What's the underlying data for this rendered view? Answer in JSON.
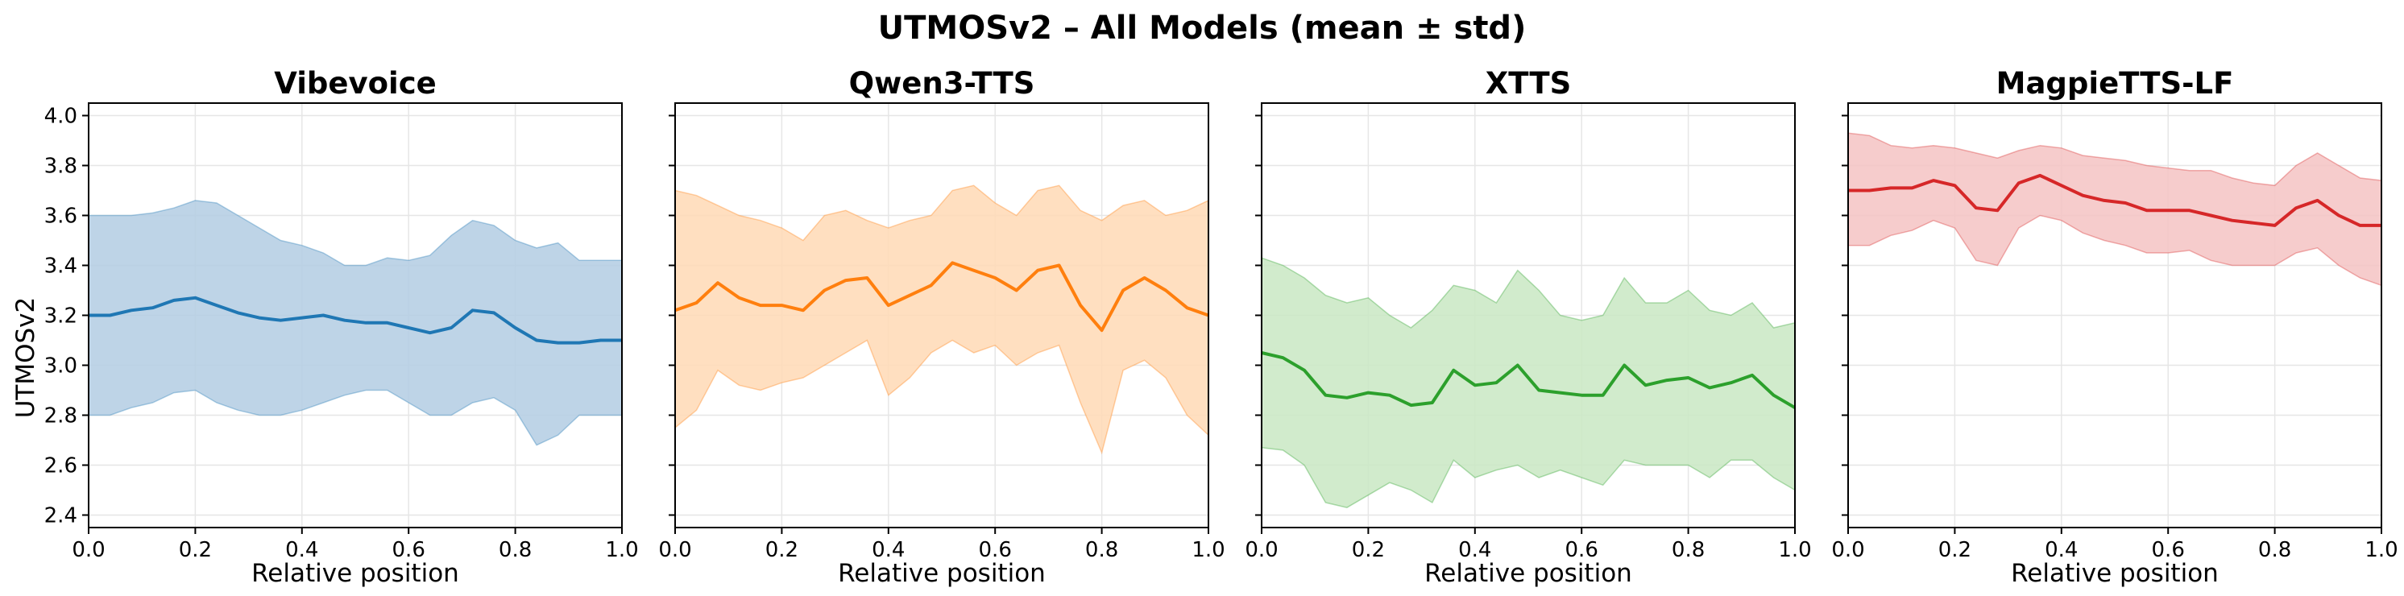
{
  "figure": {
    "suptitle": "UTMOSv2 – All Models (mean ± std)",
    "ylabel": "UTMOSv2"
  },
  "chart_data": [
    {
      "type": "line",
      "title": "Vibevoice",
      "xlabel": "Relative position",
      "ylabel": "UTMOSv2",
      "xlim": [
        0,
        1
      ],
      "ylim": [
        2.35,
        4.05
      ],
      "xticks": [
        "0.0",
        "0.2",
        "0.4",
        "0.6",
        "0.8",
        "1.0"
      ],
      "yticks": [
        "2.4",
        "2.6",
        "2.8",
        "3.0",
        "3.2",
        "3.4",
        "3.6",
        "3.8",
        "4.0"
      ],
      "grid": true,
      "color": "#1f77b4",
      "band_color": "#b3cde3",
      "x": [
        0.0,
        0.04,
        0.08,
        0.12,
        0.16,
        0.2,
        0.24,
        0.28,
        0.32,
        0.36,
        0.4,
        0.44,
        0.48,
        0.52,
        0.56,
        0.6,
        0.64,
        0.68,
        0.72,
        0.76,
        0.8,
        0.84,
        0.88,
        0.92,
        0.96,
        1.0
      ],
      "mean": [
        3.2,
        3.2,
        3.22,
        3.23,
        3.26,
        3.27,
        3.24,
        3.21,
        3.19,
        3.18,
        3.19,
        3.2,
        3.18,
        3.17,
        3.17,
        3.15,
        3.13,
        3.15,
        3.22,
        3.21,
        3.15,
        3.1,
        3.09,
        3.09,
        3.1,
        3.1
      ],
      "upper": [
        3.6,
        3.6,
        3.6,
        3.61,
        3.63,
        3.66,
        3.65,
        3.6,
        3.55,
        3.5,
        3.48,
        3.45,
        3.4,
        3.4,
        3.43,
        3.42,
        3.44,
        3.52,
        3.58,
        3.56,
        3.5,
        3.47,
        3.49,
        3.42,
        3.42,
        3.42
      ],
      "lower": [
        2.8,
        2.8,
        2.83,
        2.85,
        2.89,
        2.9,
        2.85,
        2.82,
        2.8,
        2.8,
        2.82,
        2.85,
        2.88,
        2.9,
        2.9,
        2.85,
        2.8,
        2.8,
        2.85,
        2.87,
        2.82,
        2.68,
        2.72,
        2.8,
        2.8,
        2.8
      ]
    },
    {
      "type": "line",
      "title": "Qwen3-TTS",
      "xlabel": "Relative position",
      "xlim": [
        0,
        1
      ],
      "ylim": [
        2.35,
        4.05
      ],
      "xticks": [
        "0.0",
        "0.2",
        "0.4",
        "0.6",
        "0.8",
        "1.0"
      ],
      "yticks": [
        "2.4",
        "2.6",
        "2.8",
        "3.0",
        "3.2",
        "3.4",
        "3.6",
        "3.8",
        "4.0"
      ],
      "grid": true,
      "color": "#ff7f0e",
      "band_color": "#ffd9b5",
      "x": [
        0.0,
        0.04,
        0.08,
        0.12,
        0.16,
        0.2,
        0.24,
        0.28,
        0.32,
        0.36,
        0.4,
        0.44,
        0.48,
        0.52,
        0.56,
        0.6,
        0.64,
        0.68,
        0.72,
        0.76,
        0.8,
        0.84,
        0.88,
        0.92,
        0.96,
        1.0
      ],
      "mean": [
        3.22,
        3.25,
        3.33,
        3.27,
        3.24,
        3.24,
        3.22,
        3.3,
        3.34,
        3.35,
        3.24,
        3.28,
        3.32,
        3.41,
        3.38,
        3.35,
        3.3,
        3.38,
        3.4,
        3.24,
        3.14,
        3.3,
        3.35,
        3.3,
        3.23,
        3.2
      ],
      "upper": [
        3.7,
        3.68,
        3.64,
        3.6,
        3.58,
        3.55,
        3.5,
        3.6,
        3.62,
        3.58,
        3.55,
        3.58,
        3.6,
        3.7,
        3.72,
        3.65,
        3.6,
        3.7,
        3.72,
        3.62,
        3.58,
        3.64,
        3.66,
        3.6,
        3.62,
        3.66
      ],
      "lower": [
        2.75,
        2.82,
        2.98,
        2.92,
        2.9,
        2.93,
        2.95,
        3.0,
        3.05,
        3.1,
        2.88,
        2.95,
        3.05,
        3.1,
        3.05,
        3.08,
        3.0,
        3.05,
        3.08,
        2.85,
        2.65,
        2.98,
        3.02,
        2.95,
        2.8,
        2.72
      ]
    },
    {
      "type": "line",
      "title": "XTTS",
      "xlabel": "Relative position",
      "xlim": [
        0,
        1
      ],
      "ylim": [
        2.35,
        4.05
      ],
      "xticks": [
        "0.0",
        "0.2",
        "0.4",
        "0.6",
        "0.8",
        "1.0"
      ],
      "yticks": [
        "2.4",
        "2.6",
        "2.8",
        "3.0",
        "3.2",
        "3.4",
        "3.6",
        "3.8",
        "4.0"
      ],
      "grid": true,
      "color": "#2ca02c",
      "band_color": "#c9e7c3",
      "x": [
        0.0,
        0.04,
        0.08,
        0.12,
        0.16,
        0.2,
        0.24,
        0.28,
        0.32,
        0.36,
        0.4,
        0.44,
        0.48,
        0.52,
        0.56,
        0.6,
        0.64,
        0.68,
        0.72,
        0.76,
        0.8,
        0.84,
        0.88,
        0.92,
        0.96,
        1.0
      ],
      "mean": [
        3.05,
        3.03,
        2.98,
        2.88,
        2.87,
        2.89,
        2.88,
        2.84,
        2.85,
        2.98,
        2.92,
        2.93,
        3.0,
        2.9,
        2.89,
        2.88,
        2.88,
        3.0,
        2.92,
        2.94,
        2.95,
        2.91,
        2.93,
        2.96,
        2.88,
        2.83
      ],
      "upper": [
        3.43,
        3.4,
        3.35,
        3.28,
        3.25,
        3.27,
        3.2,
        3.15,
        3.22,
        3.32,
        3.3,
        3.25,
        3.38,
        3.3,
        3.2,
        3.18,
        3.2,
        3.35,
        3.25,
        3.25,
        3.3,
        3.22,
        3.2,
        3.25,
        3.15,
        3.17
      ],
      "lower": [
        2.67,
        2.66,
        2.6,
        2.45,
        2.43,
        2.48,
        2.53,
        2.5,
        2.45,
        2.62,
        2.55,
        2.58,
        2.6,
        2.55,
        2.58,
        2.55,
        2.52,
        2.62,
        2.6,
        2.6,
        2.6,
        2.55,
        2.62,
        2.62,
        2.55,
        2.5
      ]
    },
    {
      "type": "line",
      "title": "MagpieTTS-LF",
      "xlabel": "Relative position",
      "xlim": [
        0,
        1
      ],
      "ylim": [
        2.35,
        4.05
      ],
      "xticks": [
        "0.0",
        "0.2",
        "0.4",
        "0.6",
        "0.8",
        "1.0"
      ],
      "yticks": [
        "2.4",
        "2.6",
        "2.8",
        "3.0",
        "3.2",
        "3.4",
        "3.6",
        "3.8",
        "4.0"
      ],
      "grid": true,
      "color": "#d62728",
      "band_color": "#f4c3c3",
      "x": [
        0.0,
        0.04,
        0.08,
        0.12,
        0.16,
        0.2,
        0.24,
        0.28,
        0.32,
        0.36,
        0.4,
        0.44,
        0.48,
        0.52,
        0.56,
        0.6,
        0.64,
        0.68,
        0.72,
        0.76,
        0.8,
        0.84,
        0.88,
        0.92,
        0.96,
        1.0
      ],
      "mean": [
        3.7,
        3.7,
        3.71,
        3.71,
        3.74,
        3.72,
        3.63,
        3.62,
        3.73,
        3.76,
        3.72,
        3.68,
        3.66,
        3.65,
        3.62,
        3.62,
        3.62,
        3.6,
        3.58,
        3.57,
        3.56,
        3.63,
        3.66,
        3.6,
        3.56,
        3.56
      ],
      "upper": [
        3.93,
        3.92,
        3.88,
        3.87,
        3.88,
        3.87,
        3.85,
        3.83,
        3.86,
        3.88,
        3.87,
        3.84,
        3.83,
        3.82,
        3.8,
        3.79,
        3.78,
        3.78,
        3.75,
        3.73,
        3.72,
        3.8,
        3.85,
        3.8,
        3.75,
        3.74
      ],
      "lower": [
        3.48,
        3.48,
        3.52,
        3.54,
        3.58,
        3.55,
        3.42,
        3.4,
        3.55,
        3.6,
        3.58,
        3.53,
        3.5,
        3.48,
        3.45,
        3.45,
        3.46,
        3.42,
        3.4,
        3.4,
        3.4,
        3.45,
        3.47,
        3.4,
        3.35,
        3.32
      ]
    }
  ]
}
